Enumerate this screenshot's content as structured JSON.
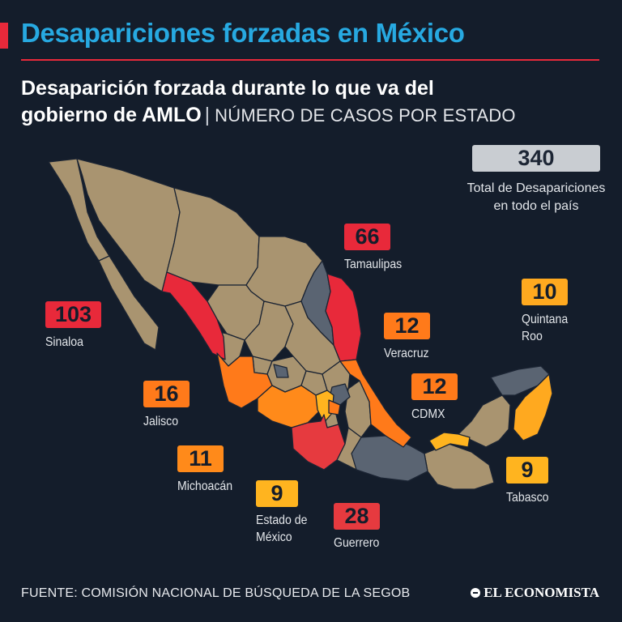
{
  "header": {
    "title": "Desapariciones forzadas en México",
    "subtitle_bold_1": "Desaparición forzada durante lo que va del",
    "subtitle_bold_2": "gobierno de AMLO",
    "subtitle_separator": "|",
    "subtitle_caption": "NÚMERO DE CASOS POR ESTADO"
  },
  "total": {
    "value": "340",
    "label_line1": "Total de Desapariciones",
    "label_line2": "en todo el país"
  },
  "states": [
    {
      "name": "Sinaloa",
      "value": "103",
      "color": "#e8293a"
    },
    {
      "name": "Tamaulipas",
      "value": "66",
      "color": "#e8293a"
    },
    {
      "name": "Guerrero",
      "value": "28",
      "color": "#e63a3f"
    },
    {
      "name": "Jalisco",
      "value": "16",
      "color": "#ff7a1a"
    },
    {
      "name": "Veracruz",
      "value": "12",
      "color": "#ff7a1a"
    },
    {
      "name": "CDMX",
      "value": "12",
      "color": "#ff7a1a"
    },
    {
      "name": "Michoacán",
      "value": "11",
      "color": "#ff8a1a"
    },
    {
      "name": "Quintana Roo",
      "name_line1": "Quintana",
      "name_line2": "Roo",
      "value": "10",
      "color": "#ffa91f"
    },
    {
      "name": "Estado de México",
      "name_line1": "Estado de",
      "name_line2": "México",
      "value": "9",
      "color": "#ffb41f"
    },
    {
      "name": "Tabasco",
      "value": "9",
      "color": "#ffb41f"
    }
  ],
  "map_colors": {
    "background": "#141d2b",
    "no_cases_state": "#a99470",
    "no_data_state": "#5a6472",
    "border": "#1b2433"
  },
  "footer": {
    "source": "FUENTE: COMISIÓN NACIONAL DE BÚSQUEDA DE LA SEGOB",
    "brand": "EL ECONOMISTA"
  }
}
